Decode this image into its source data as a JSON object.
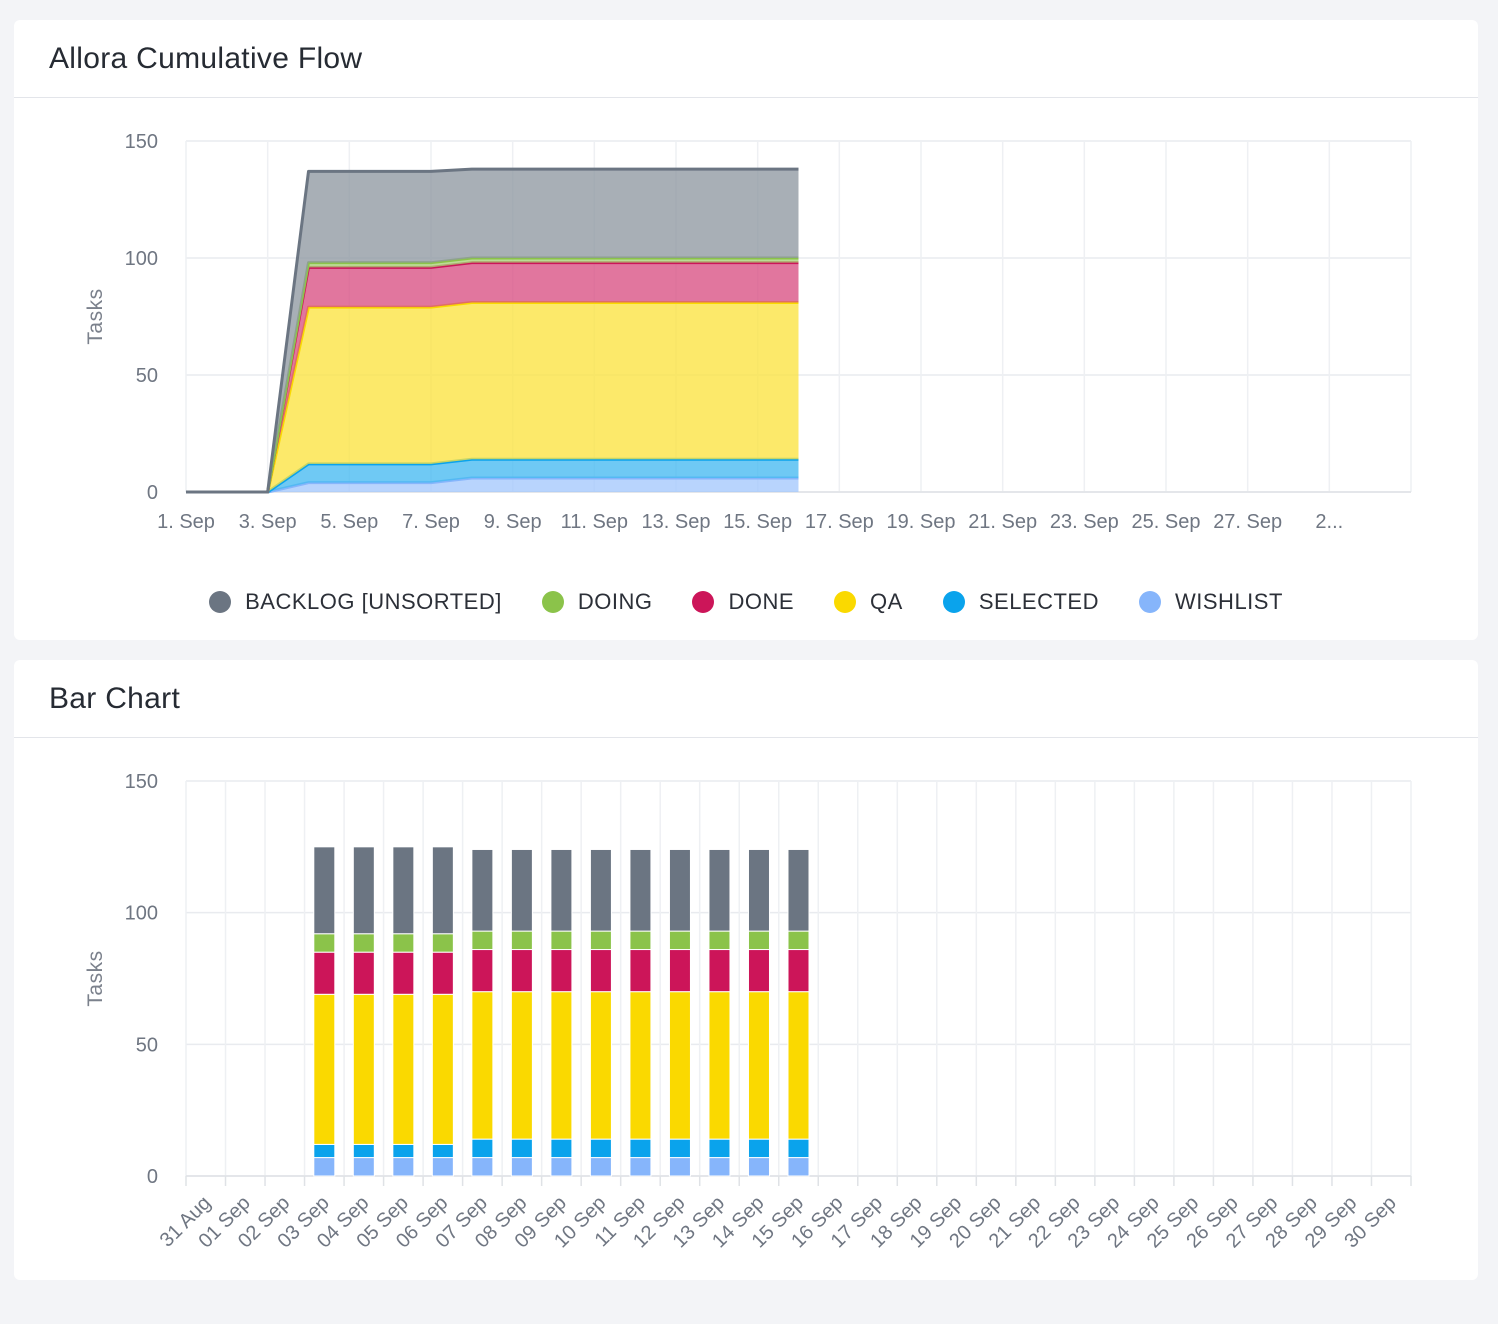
{
  "cumulative_card": {
    "title": "Allora Cumulative Flow"
  },
  "bar_card": {
    "title": "Bar Chart"
  },
  "legend": [
    {
      "label": "BACKLOG [UNSORTED]",
      "color": "#6b7582"
    },
    {
      "label": "DOING",
      "color": "#8bc34a"
    },
    {
      "label": "DONE",
      "color": "#cc1559"
    },
    {
      "label": "QA",
      "color": "#fad900"
    },
    {
      "label": "SELECTED",
      "color": "#0aa3ec"
    },
    {
      "label": "WISHLIST",
      "color": "#86b5fb"
    }
  ],
  "chart_data": [
    {
      "type": "area",
      "title": "Allora Cumulative Flow",
      "ylabel": "Tasks",
      "ylim": [
        0,
        150
      ],
      "yticks": [
        0,
        50,
        100,
        150
      ],
      "grid": true,
      "legend_position": "bottom",
      "stacked": true,
      "x_days": [
        1,
        2,
        3,
        4,
        5,
        6,
        7,
        8,
        9,
        10,
        11,
        12,
        13,
        14,
        15,
        16
      ],
      "xtick_labels": [
        "1. Sep",
        "3. Sep",
        "5. Sep",
        "7. Sep",
        "9. Sep",
        "11. Sep",
        "13. Sep",
        "15. Sep",
        "17. Sep",
        "19. Sep",
        "21. Sep",
        "23. Sep",
        "25. Sep",
        "27. Sep",
        "2..."
      ],
      "series": [
        {
          "name": "WISHLIST",
          "color": "#86b5fb",
          "values": [
            0,
            0,
            0,
            4,
            4,
            4,
            4,
            6,
            6,
            6,
            6,
            6,
            6,
            6,
            6,
            6
          ]
        },
        {
          "name": "SELECTED",
          "color": "#0aa3ec",
          "values": [
            0,
            0,
            0,
            8,
            8,
            8,
            8,
            8,
            8,
            8,
            8,
            8,
            8,
            8,
            8,
            8
          ]
        },
        {
          "name": "QA",
          "color": "#fad900",
          "values": [
            0,
            0,
            0,
            67,
            67,
            67,
            67,
            67,
            67,
            67,
            67,
            67,
            67,
            67,
            67,
            67
          ]
        },
        {
          "name": "DONE",
          "color": "#cc1559",
          "values": [
            0,
            0,
            0,
            17,
            17,
            17,
            17,
            17,
            17,
            17,
            17,
            17,
            17,
            17,
            17,
            17
          ]
        },
        {
          "name": "DOING",
          "color": "#8bc34a",
          "values": [
            0,
            0,
            0,
            2,
            2,
            2,
            2,
            2,
            2,
            2,
            2,
            2,
            2,
            2,
            2,
            2
          ]
        },
        {
          "name": "BACKLOG [UNSORTED]",
          "color": "#6b7582",
          "values": [
            0,
            0,
            0,
            39,
            39,
            39,
            39,
            38,
            38,
            38,
            38,
            38,
            38,
            38,
            38,
            38
          ]
        }
      ]
    },
    {
      "type": "bar",
      "title": "Bar Chart",
      "ylabel": "Tasks",
      "ylim": [
        0,
        150
      ],
      "yticks": [
        0,
        50,
        100,
        150
      ],
      "grid": true,
      "stacked": true,
      "categories": [
        "31 Aug",
        "01 Sep",
        "02 Sep",
        "03 Sep",
        "04 Sep",
        "05 Sep",
        "06 Sep",
        "07 Sep",
        "08 Sep",
        "09 Sep",
        "10 Sep",
        "11 Sep",
        "12 Sep",
        "13 Sep",
        "14 Sep",
        "15 Sep",
        "16 Sep",
        "17 Sep",
        "18 Sep",
        "19 Sep",
        "20 Sep",
        "21 Sep",
        "22 Sep",
        "23 Sep",
        "24 Sep",
        "25 Sep",
        "26 Sep",
        "27 Sep",
        "28 Sep",
        "29 Sep",
        "30 Sep"
      ],
      "series": [
        {
          "name": "WISHLIST",
          "color": "#86b5fb",
          "values": [
            0,
            0,
            0,
            7,
            7,
            7,
            7,
            7,
            7,
            7,
            7,
            7,
            7,
            7,
            7,
            7,
            0,
            0,
            0,
            0,
            0,
            0,
            0,
            0,
            0,
            0,
            0,
            0,
            0,
            0,
            0
          ]
        },
        {
          "name": "SELECTED",
          "color": "#0aa3ec",
          "values": [
            0,
            0,
            0,
            5,
            5,
            5,
            5,
            7,
            7,
            7,
            7,
            7,
            7,
            7,
            7,
            7,
            0,
            0,
            0,
            0,
            0,
            0,
            0,
            0,
            0,
            0,
            0,
            0,
            0,
            0,
            0
          ]
        },
        {
          "name": "QA",
          "color": "#fad900",
          "values": [
            0,
            0,
            0,
            57,
            57,
            57,
            57,
            56,
            56,
            56,
            56,
            56,
            56,
            56,
            56,
            56,
            0,
            0,
            0,
            0,
            0,
            0,
            0,
            0,
            0,
            0,
            0,
            0,
            0,
            0,
            0
          ]
        },
        {
          "name": "DONE",
          "color": "#cc1559",
          "values": [
            0,
            0,
            0,
            16,
            16,
            16,
            16,
            16,
            16,
            16,
            16,
            16,
            16,
            16,
            16,
            16,
            0,
            0,
            0,
            0,
            0,
            0,
            0,
            0,
            0,
            0,
            0,
            0,
            0,
            0,
            0
          ]
        },
        {
          "name": "DOING",
          "color": "#8bc34a",
          "values": [
            0,
            0,
            0,
            7,
            7,
            7,
            7,
            7,
            7,
            7,
            7,
            7,
            7,
            7,
            7,
            7,
            0,
            0,
            0,
            0,
            0,
            0,
            0,
            0,
            0,
            0,
            0,
            0,
            0,
            0,
            0
          ]
        },
        {
          "name": "BACKLOG [UNSORTED]",
          "color": "#6b7582",
          "values": [
            0,
            0,
            0,
            33,
            33,
            33,
            33,
            31,
            31,
            31,
            31,
            31,
            31,
            31,
            31,
            31,
            0,
            0,
            0,
            0,
            0,
            0,
            0,
            0,
            0,
            0,
            0,
            0,
            0,
            0,
            0
          ]
        }
      ]
    }
  ]
}
